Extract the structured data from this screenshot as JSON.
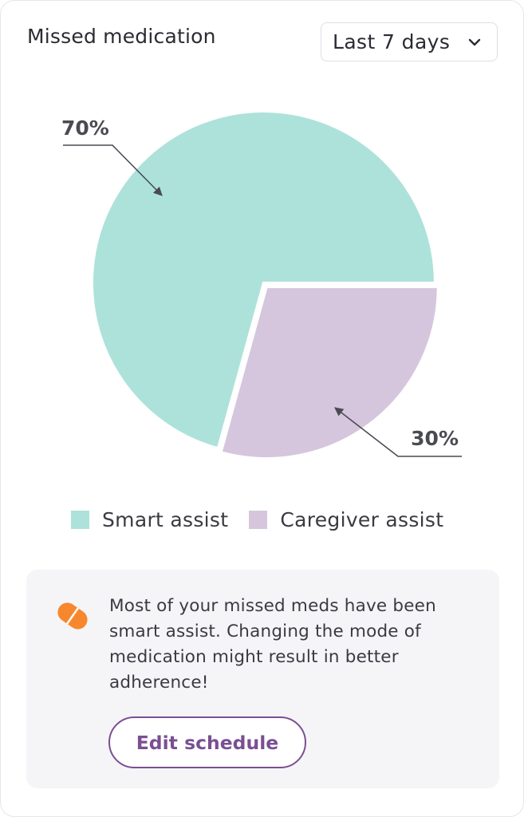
{
  "header": {
    "title": "Missed medication",
    "period_selected": "Last 7 days"
  },
  "chart_data": {
    "type": "pie",
    "title": "",
    "categories": [
      "Smart assist",
      "Caregiver assist"
    ],
    "values": [
      70,
      30
    ],
    "data_labels": [
      "70%",
      "30%"
    ],
    "colors": [
      "#ade2da",
      "#d5c6dd"
    ],
    "legend_position": "bottom"
  },
  "legend": {
    "items": [
      {
        "label": "Smart assist",
        "color": "#ade2da"
      },
      {
        "label": "Caregiver assist",
        "color": "#d5c6dd"
      }
    ]
  },
  "info": {
    "icon": "pill-icon",
    "icon_color": "#f7872d",
    "message": "Most of your missed meds have been smart assist. Changing the mode of medication might result in better adherence!",
    "button_label": "Edit schedule",
    "accent_color": "#7a4f92"
  }
}
